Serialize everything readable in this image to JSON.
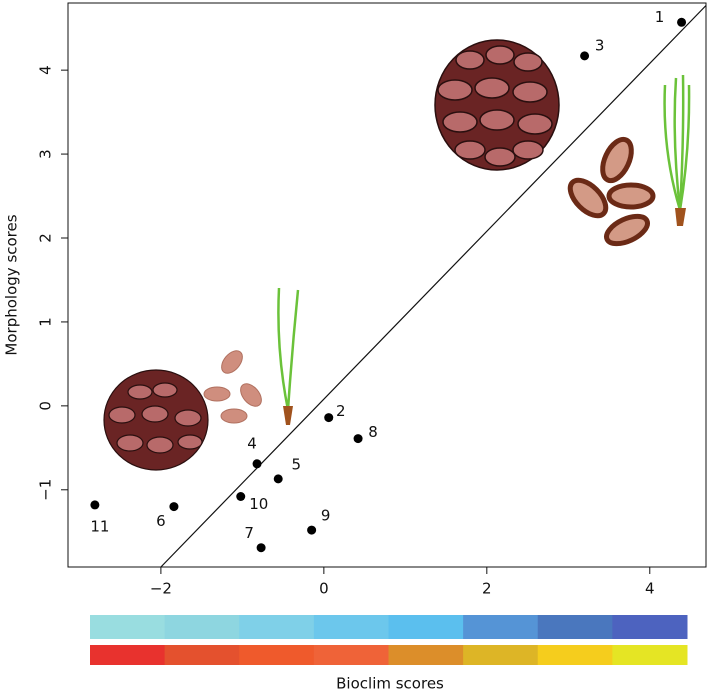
{
  "chart_data": {
    "type": "scatter",
    "xlabel": "Bioclim scores",
    "ylabel": "Morphology scores",
    "xlim": [
      -3.14,
      4.69
    ],
    "ylim": [
      -1.92,
      4.8
    ],
    "xticks": [
      {
        "value": -2,
        "label": "−2"
      },
      0,
      2,
      4
    ],
    "yticks": [
      {
        "value": -1,
        "label": "−1"
      },
      0,
      1,
      2,
      3,
      4
    ],
    "reference_line": {
      "slope": 1,
      "intercept": 0.08
    },
    "point_color": "#000000",
    "series": [
      {
        "labels": [
          "1",
          "3",
          "2",
          "8",
          "4",
          "5",
          "10",
          "9",
          "7",
          "6",
          "11"
        ],
        "x": [
          4.39,
          3.2,
          0.06,
          0.42,
          -0.82,
          -0.56,
          -1.02,
          -0.15,
          -0.77,
          -1.84,
          -2.81
        ],
        "values": [
          4.57,
          4.17,
          -0.14,
          -0.39,
          -0.69,
          -0.87,
          -1.08,
          -1.48,
          -1.69,
          -1.2,
          -1.18
        ]
      }
    ],
    "color_scales": [
      [
        "#99dde0",
        "#8ed6e0",
        "#7fd0e8",
        "#6cc7ec",
        "#5bbfee",
        "#5594d6",
        "#4a77be",
        "#4d63bf"
      ],
      [
        "#e8322e",
        "#e4512e",
        "#ef5a2c",
        "#ef6338",
        "#dc8e2a",
        "#ddb526",
        "#f5cd1d",
        "#e5e524"
      ]
    ]
  }
}
